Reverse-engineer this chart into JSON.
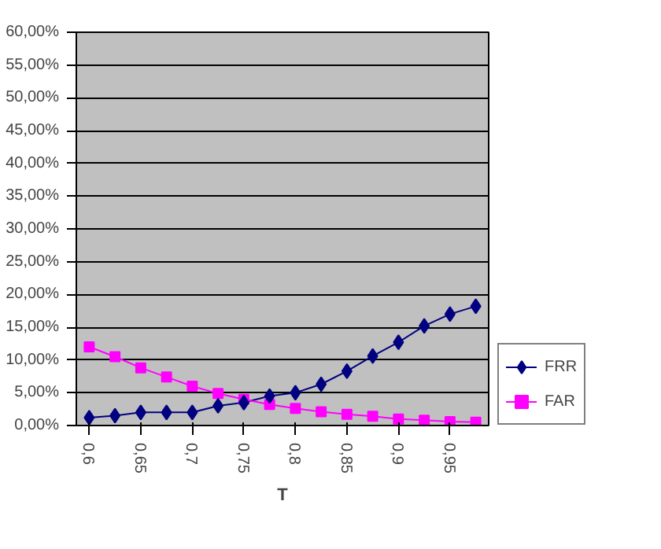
{
  "chart_data": {
    "type": "line",
    "xlabel": "T",
    "categories": [
      "0,6",
      null,
      "0,65",
      null,
      "0,7",
      null,
      "0,75",
      null,
      "0,8",
      null,
      "0,85",
      null,
      "0,9",
      null,
      "0,95",
      null
    ],
    "series": [
      {
        "name": "FRR",
        "color": "#000080",
        "marker": "diamond",
        "values": [
          1.2,
          1.5,
          2.0,
          2.0,
          2.0,
          3.0,
          3.5,
          4.5,
          5.0,
          6.3,
          8.3,
          10.6,
          12.7,
          15.2,
          17.0,
          18.2
        ]
      },
      {
        "name": "FAR",
        "color": "#ff00ff",
        "marker": "square",
        "values": [
          12.0,
          10.5,
          8.8,
          7.4,
          6.0,
          4.9,
          4.0,
          3.2,
          2.6,
          2.1,
          1.7,
          1.4,
          1.0,
          0.8,
          0.6,
          0.5
        ]
      }
    ],
    "ylim": [
      0,
      60
    ],
    "yticks": [
      {
        "value": 0,
        "label": "0,00%"
      },
      {
        "value": 5,
        "label": "5,00%"
      },
      {
        "value": 10,
        "label": "10,00%"
      },
      {
        "value": 15,
        "label": "15,00%"
      },
      {
        "value": 20,
        "label": "20,00%"
      },
      {
        "value": 25,
        "label": "25,00%"
      },
      {
        "value": 30,
        "label": "30,00%"
      },
      {
        "value": 35,
        "label": "35,00%"
      },
      {
        "value": 40,
        "label": "40,00%"
      },
      {
        "value": 45,
        "label": "45,00%"
      },
      {
        "value": 50,
        "label": "50,00%"
      },
      {
        "value": 55,
        "label": "55,00%"
      },
      {
        "value": 60,
        "label": "60,00%"
      }
    ],
    "grid": "y",
    "legend": "right",
    "line_style": "solid"
  }
}
